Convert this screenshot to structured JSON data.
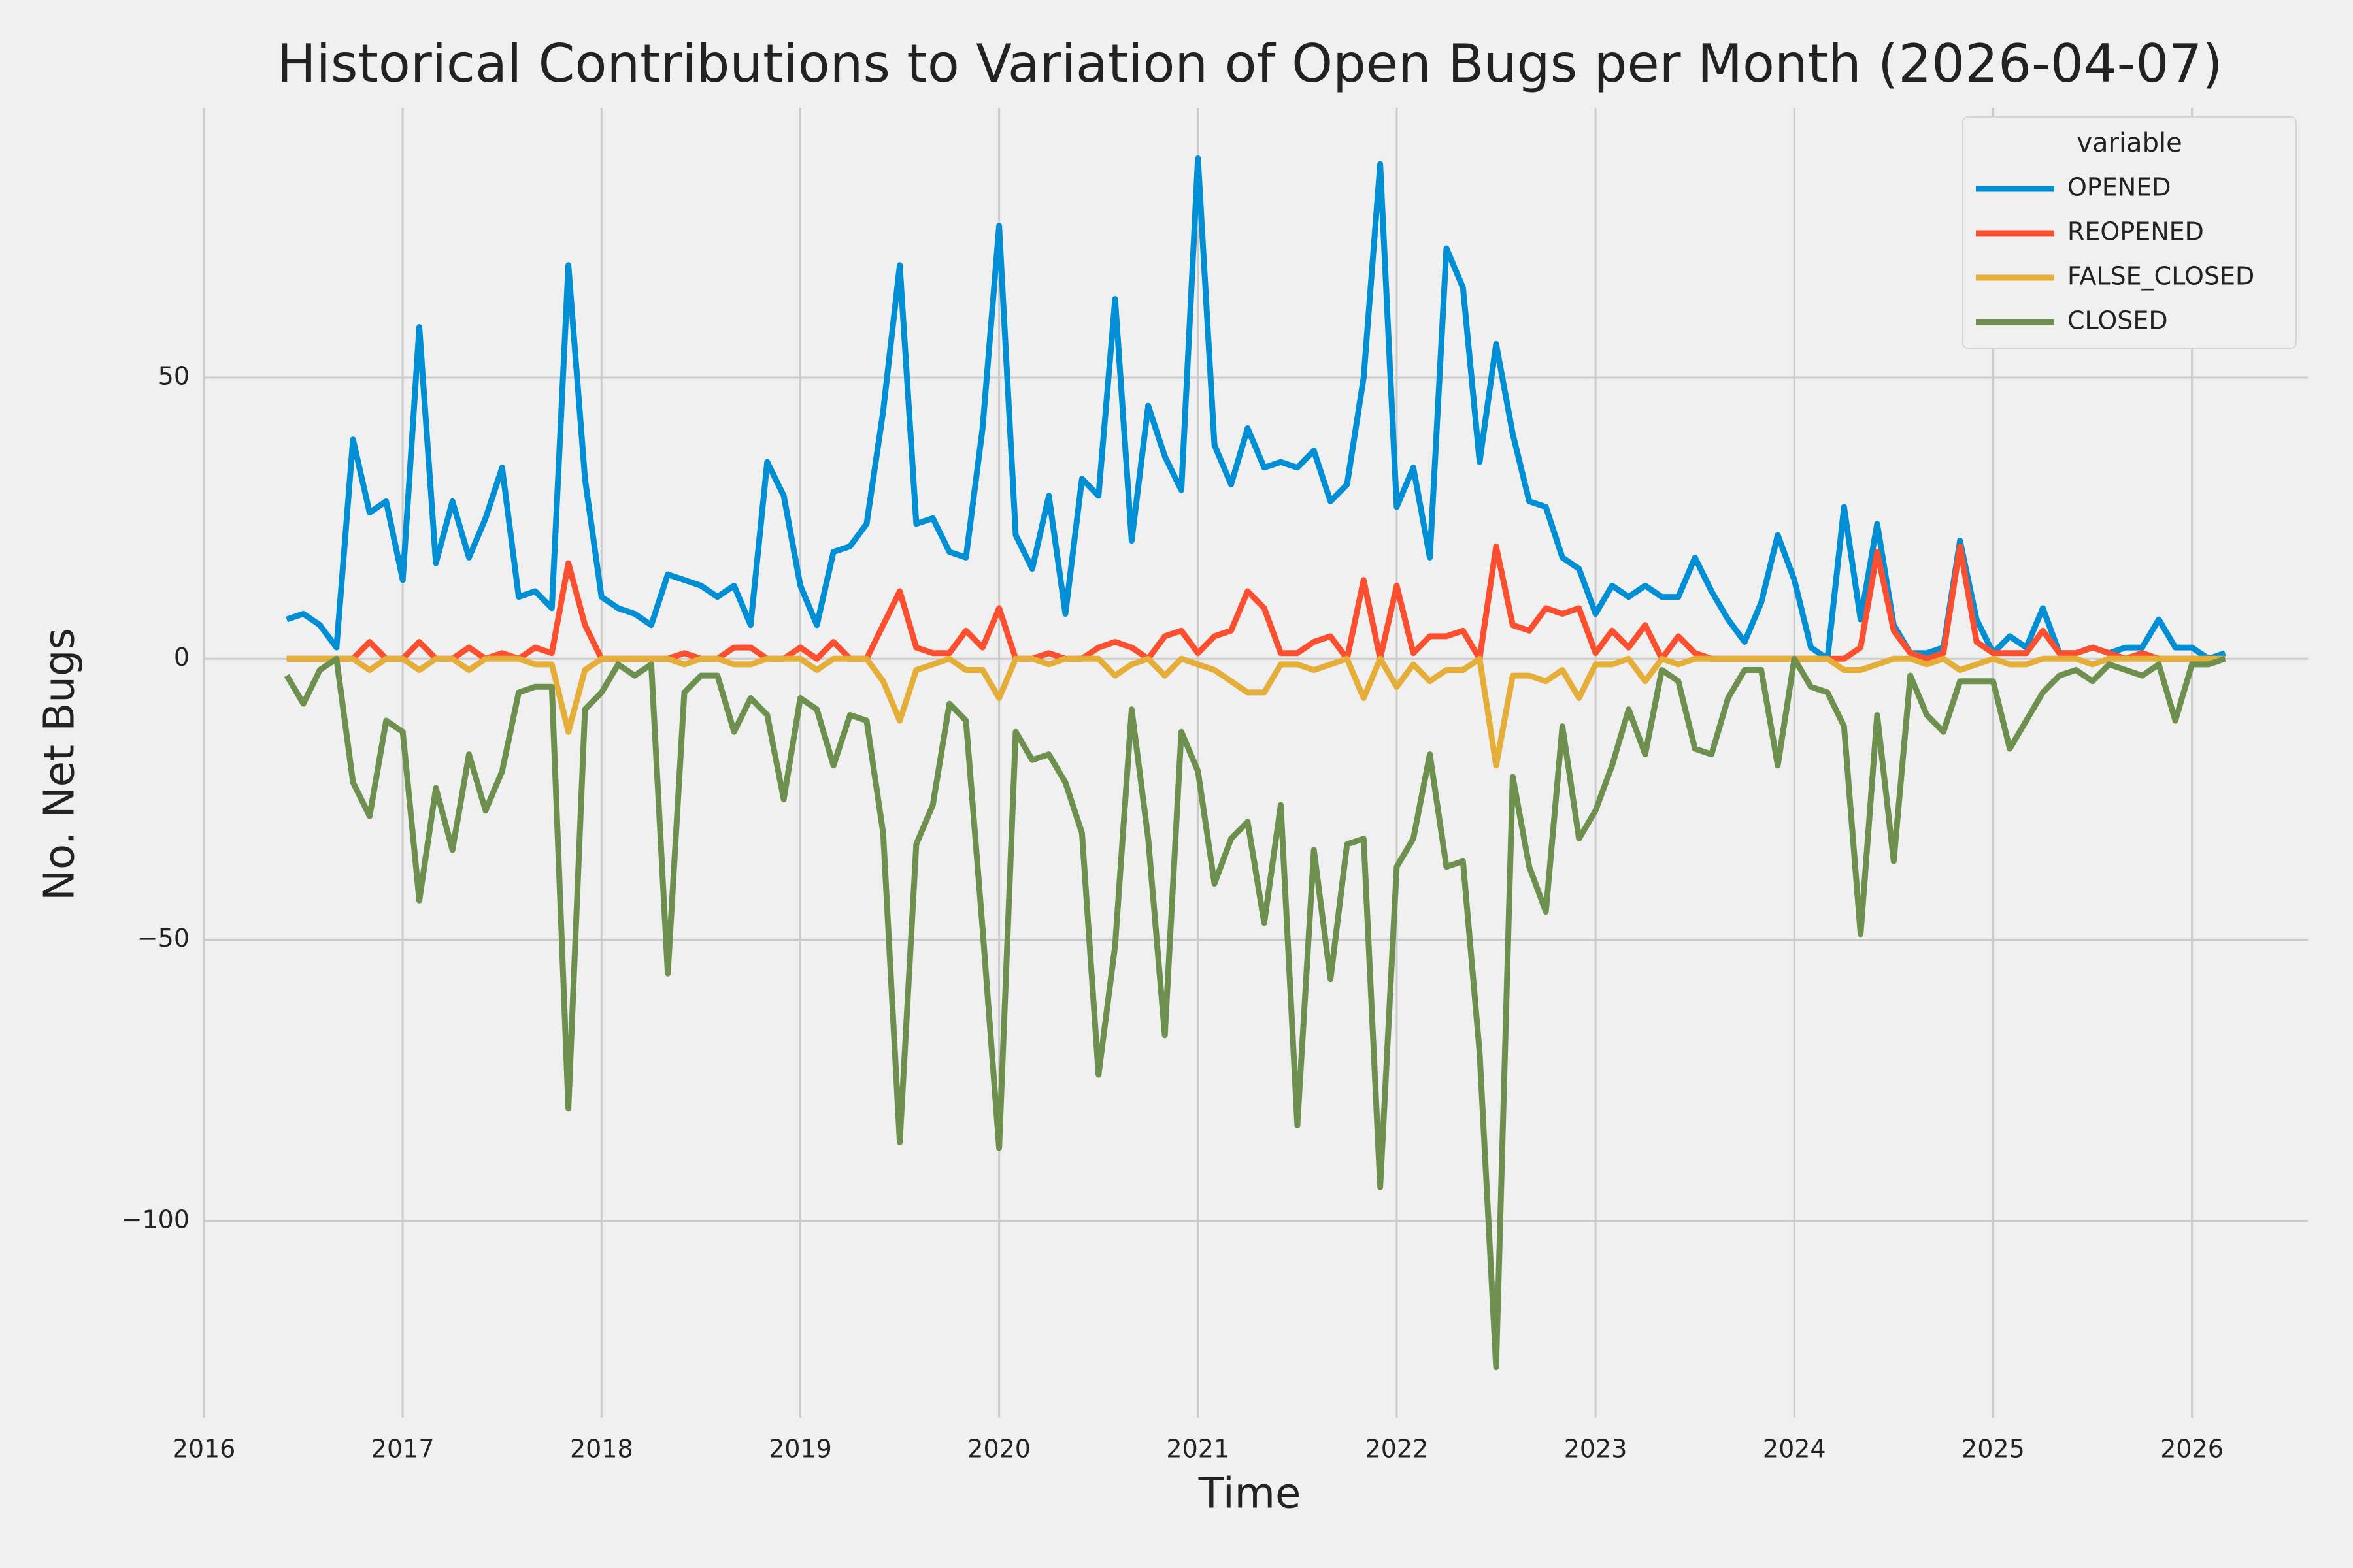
{
  "chart_data": {
    "type": "line",
    "title": "Historical Contributions to Variation of Open Bugs per Month (2026-04-07)",
    "xlabel": "Time",
    "ylabel": "No. Net Bugs",
    "legend_title": "variable",
    "legend_loc": "upper right",
    "grid": true,
    "x": [
      "2016-06",
      "2016-07",
      "2016-08",
      "2016-09",
      "2016-10",
      "2016-11",
      "2016-12",
      "2017-01",
      "2017-02",
      "2017-03",
      "2017-04",
      "2017-05",
      "2017-06",
      "2017-07",
      "2017-08",
      "2017-09",
      "2017-10",
      "2017-11",
      "2017-12",
      "2018-01",
      "2018-02",
      "2018-03",
      "2018-04",
      "2018-05",
      "2018-06",
      "2018-07",
      "2018-08",
      "2018-09",
      "2018-10",
      "2018-11",
      "2018-12",
      "2019-01",
      "2019-02",
      "2019-03",
      "2019-04",
      "2019-05",
      "2019-06",
      "2019-07",
      "2019-08",
      "2019-09",
      "2019-10",
      "2019-11",
      "2019-12",
      "2020-01",
      "2020-02",
      "2020-03",
      "2020-04",
      "2020-05",
      "2020-06",
      "2020-07",
      "2020-08",
      "2020-09",
      "2020-10",
      "2020-11",
      "2020-12",
      "2021-01",
      "2021-02",
      "2021-03",
      "2021-04",
      "2021-05",
      "2021-06",
      "2021-07",
      "2021-08",
      "2021-09",
      "2021-10",
      "2021-11",
      "2021-12",
      "2022-01",
      "2022-02",
      "2022-03",
      "2022-04",
      "2022-05",
      "2022-06",
      "2022-07",
      "2022-08",
      "2022-09",
      "2022-10",
      "2022-11",
      "2022-12",
      "2023-01",
      "2023-02",
      "2023-03",
      "2023-04",
      "2023-05",
      "2023-06",
      "2023-07",
      "2023-08",
      "2023-09",
      "2023-10",
      "2023-11",
      "2023-12",
      "2024-01",
      "2024-02",
      "2024-03",
      "2024-04",
      "2024-05",
      "2024-06",
      "2024-07",
      "2024-08",
      "2024-09",
      "2024-10",
      "2024-11",
      "2024-12",
      "2025-01",
      "2025-02",
      "2025-03",
      "2025-04",
      "2025-05",
      "2025-06",
      "2025-07",
      "2025-08",
      "2025-09",
      "2025-10",
      "2025-11",
      "2025-12",
      "2026-01",
      "2026-02",
      "2026-03"
    ],
    "series": [
      {
        "name": "OPENED",
        "color": "#008fd5",
        "values": [
          7,
          8,
          6,
          2,
          39,
          26,
          28,
          14,
          59,
          17,
          28,
          18,
          25,
          34,
          11,
          12,
          9,
          70,
          32,
          11,
          9,
          8,
          6,
          15,
          14,
          13,
          11,
          13,
          6,
          35,
          29,
          13,
          6,
          19,
          20,
          24,
          44,
          70,
          24,
          25,
          19,
          18,
          41,
          77,
          22,
          16,
          29,
          8,
          32,
          29,
          64,
          21,
          45,
          36,
          30,
          89,
          38,
          31,
          41,
          34,
          35,
          34,
          37,
          28,
          31,
          50,
          88,
          27,
          34,
          18,
          73,
          66,
          35,
          56,
          40,
          28,
          27,
          18,
          16,
          8,
          13,
          11,
          13,
          11,
          11,
          18,
          12,
          7,
          3,
          10,
          22,
          14,
          2,
          0,
          27,
          7,
          24,
          6,
          1,
          1,
          2,
          21,
          7,
          1,
          4,
          2,
          9,
          1,
          1,
          2,
          1,
          2,
          2,
          7,
          2,
          2,
          0,
          1
        ]
      },
      {
        "name": "REOPENED",
        "color": "#fc4f30",
        "values": [
          0,
          0,
          0,
          0,
          0,
          3,
          0,
          0,
          3,
          0,
          0,
          2,
          0,
          1,
          0,
          2,
          1,
          17,
          6,
          0,
          0,
          0,
          0,
          0,
          1,
          0,
          0,
          2,
          2,
          0,
          0,
          2,
          0,
          3,
          0,
          0,
          6,
          12,
          2,
          1,
          1,
          5,
          2,
          9,
          0,
          0,
          1,
          0,
          0,
          2,
          3,
          2,
          0,
          4,
          5,
          1,
          4,
          5,
          12,
          9,
          1,
          1,
          3,
          4,
          0,
          14,
          0,
          13,
          1,
          4,
          4,
          5,
          0,
          20,
          6,
          5,
          9,
          8,
          9,
          1,
          5,
          2,
          6,
          0,
          4,
          1,
          0,
          0,
          0,
          0,
          0,
          0,
          0,
          0,
          0,
          2,
          19,
          5,
          1,
          0,
          1,
          20,
          3,
          1,
          1,
          1,
          5,
          1,
          1,
          2,
          1,
          0,
          1,
          0,
          0,
          0,
          0,
          0
        ]
      },
      {
        "name": "FALSE_CLOSED",
        "color": "#e5ae38",
        "values": [
          0,
          0,
          0,
          0,
          0,
          -2,
          0,
          0,
          -2,
          0,
          0,
          -2,
          0,
          0,
          0,
          -1,
          -1,
          -13,
          -2,
          0,
          0,
          0,
          0,
          0,
          -1,
          0,
          0,
          -1,
          -1,
          0,
          0,
          0,
          -2,
          0,
          0,
          0,
          -4,
          -11,
          -2,
          -1,
          0,
          -2,
          -2,
          -7,
          0,
          0,
          -1,
          0,
          0,
          0,
          -3,
          -1,
          0,
          -3,
          0,
          -1,
          -2,
          -4,
          -6,
          -6,
          -1,
          -1,
          -2,
          -1,
          0,
          -7,
          0,
          -5,
          -1,
          -4,
          -2,
          -2,
          0,
          -19,
          -3,
          -3,
          -4,
          -2,
          -7,
          -1,
          -1,
          0,
          -4,
          0,
          -1,
          0,
          0,
          0,
          0,
          0,
          0,
          0,
          0,
          0,
          -2,
          -2,
          -1,
          0,
          0,
          -1,
          0,
          -2,
          -1,
          0,
          -1,
          -1,
          0,
          0,
          0,
          -1,
          0,
          0,
          0,
          0,
          0,
          0,
          0,
          0
        ]
      },
      {
        "name": "CLOSED",
        "color": "#6d904f",
        "values": [
          -3,
          -8,
          -2,
          0,
          -22,
          -28,
          -11,
          -13,
          -43,
          -23,
          -34,
          -17,
          -27,
          -20,
          -6,
          -5,
          -5,
          -80,
          -9,
          -6,
          -1,
          -3,
          -1,
          -56,
          -6,
          -3,
          -3,
          -13,
          -7,
          -10,
          -25,
          -7,
          -9,
          -19,
          -10,
          -11,
          -31,
          -86,
          -33,
          -26,
          -8,
          -11,
          -48,
          -87,
          -13,
          -18,
          -17,
          -22,
          -31,
          -74,
          -51,
          -9,
          -32,
          -67,
          -13,
          -20,
          -40,
          -32,
          -29,
          -47,
          -26,
          -83,
          -34,
          -57,
          -33,
          -32,
          -94,
          -37,
          -32,
          -17,
          -37,
          -36,
          -70,
          -126,
          -21,
          -37,
          -45,
          -12,
          -32,
          -27,
          -19,
          -9,
          -17,
          -2,
          -4,
          -16,
          -17,
          -7,
          -2,
          -2,
          -19,
          0,
          -5,
          -6,
          -12,
          -49,
          -10,
          -36,
          -3,
          -10,
          -13,
          -4,
          -4,
          -4,
          -16,
          -11,
          -6,
          -3,
          -2,
          -4,
          -1,
          -2,
          -3,
          -1,
          -11,
          -1,
          -1,
          0
        ]
      }
    ],
    "xlim": [
      "2016-01",
      "2026-08"
    ],
    "xticks": [
      2016,
      2017,
      2018,
      2019,
      2020,
      2021,
      2022,
      2023,
      2024,
      2025,
      2026
    ],
    "ylim": [
      -135,
      98
    ],
    "yticks": [
      {
        "value": -100,
        "label": "−100"
      },
      {
        "value": -50,
        "label": "−50"
      },
      0,
      50
    ]
  }
}
